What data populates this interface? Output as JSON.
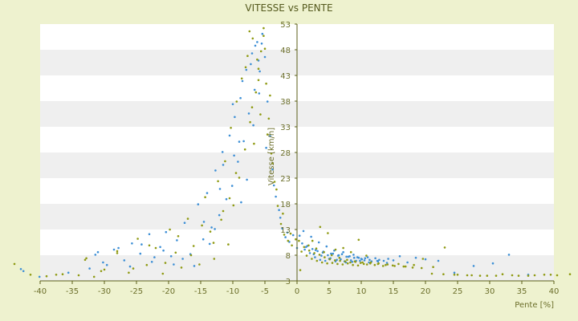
{
  "chart_data": {
    "type": "scatter",
    "title": "VITESSE vs PENTE",
    "xlabel": "Pente [%]",
    "ylabel": "Vitesse [km/h]",
    "xlim": [
      -40,
      40
    ],
    "ylim": [
      3,
      53
    ],
    "x_ticks": [
      -40,
      -35,
      -30,
      -25,
      -20,
      -15,
      -10,
      -5,
      0,
      5,
      10,
      15,
      20,
      25,
      30,
      35,
      40
    ],
    "y_ticks": [
      3,
      8,
      13,
      18,
      23,
      28,
      33,
      38,
      43,
      48,
      53
    ],
    "grid": "horizontal bands",
    "legend": "none",
    "colors": {
      "background": "#eef2cf",
      "plot_band_light": "#ffffff",
      "plot_band_dark": "#efefef",
      "axis": "#5b5f18",
      "series_a": "#3d8fd6",
      "series_b": "#8f9a12"
    },
    "series": [
      {
        "color": "#3d8fd6",
        "x": [
          -43.0,
          -42.6,
          -40.1,
          -35.6,
          -32.3,
          -31.4,
          -30.2,
          -28.5,
          -26.9,
          -25.7,
          -24.4,
          -23.0,
          -22.2,
          -21.3,
          -20.4,
          -19.6,
          -18.7,
          -17.5,
          -16.6,
          -15.4,
          -14.6,
          -14.0,
          -13.3,
          -12.7,
          -12.1,
          -11.6,
          -11.0,
          -10.5,
          -10.1,
          -9.7,
          -9.2,
          -8.8,
          -8.3,
          -7.9,
          -7.5,
          -7.0,
          -6.6,
          -6.2,
          -5.8,
          -5.4,
          -5.0,
          -4.6,
          -4.2,
          -3.8,
          -3.3,
          -2.8,
          -2.3,
          -1.8,
          -1.2,
          -0.6,
          0.0,
          0.4,
          0.8,
          1.2,
          1.6,
          2.0,
          2.4,
          2.8,
          3.2,
          3.6,
          4.0,
          4.4,
          4.8,
          5.2,
          5.6,
          6.0,
          6.4,
          6.8,
          7.2,
          7.6,
          8.0,
          8.4,
          8.8,
          9.2,
          9.6,
          10.0,
          10.5,
          11.0,
          11.6,
          12.2,
          12.8,
          13.5,
          14.2,
          15.0,
          16.0,
          17.2,
          18.5,
          20.0,
          22.0,
          24.5,
          27.5,
          30.5,
          33.0,
          36.0,
          -14.5,
          -12.0,
          -11.5,
          -9.0,
          -10.0,
          -8.5,
          -7.2,
          -6.5,
          -6.0,
          -5.5,
          -9.8,
          -8.7,
          -7.8,
          -6.8,
          -5.9,
          -12.8,
          -13.6,
          -4.8,
          -3.6,
          -2.6,
          -1.5,
          1.0,
          2.2,
          3.4,
          4.6,
          5.8,
          7.0,
          8.2,
          9.4,
          10.6,
          2.6,
          3.8,
          5.0,
          6.2,
          7.4,
          8.6,
          9.8,
          11.2,
          12.6,
          14.0,
          1.4,
          2.9,
          4.1,
          5.3,
          6.5,
          7.7,
          8.9,
          10.1,
          11.3,
          12.5,
          -16.0,
          -17.8,
          -19.2,
          -20.8,
          -22.6,
          -24.2,
          -26.0,
          -27.8,
          -29.6,
          -31.0
        ],
        "y": [
          5.3,
          4.9,
          3.8,
          4.6,
          5.4,
          8.1,
          6.6,
          9.1,
          7.0,
          10.3,
          8.3,
          12.1,
          7.6,
          9.6,
          12.5,
          7.8,
          10.9,
          14.3,
          8.2,
          17.9,
          11.1,
          20.1,
          13.4,
          24.5,
          15.8,
          28.1,
          18.9,
          31.3,
          21.5,
          34.9,
          26.2,
          38.6,
          30.2,
          44.1,
          35.6,
          47.3,
          40.2,
          49.5,
          43.8,
          51.1,
          46.6,
          37.9,
          31.2,
          24.7,
          19.4,
          16.8,
          13.2,
          11.5,
          10.6,
          11.9,
          9.4,
          11.8,
          10.3,
          9.1,
          9.8,
          8.4,
          9.2,
          7.6,
          8.8,
          7.1,
          8.5,
          6.9,
          8.0,
          7.4,
          8.3,
          6.8,
          7.9,
          7.2,
          8.6,
          6.6,
          7.7,
          7.0,
          8.1,
          6.9,
          7.5,
          7.3,
          7.0,
          7.6,
          6.8,
          7.4,
          7.1,
          6.9,
          7.3,
          7.0,
          7.8,
          6.6,
          7.5,
          7.2,
          6.9,
          4.6,
          5.9,
          6.4,
          8.1,
          4.2,
          14.5,
          20.9,
          25.6,
          30.1,
          37.4,
          41.9,
          45.2,
          48.8,
          45.9,
          49.2,
          27.4,
          18.3,
          22.7,
          33.3,
          39.5,
          13.1,
          10.2,
          28.9,
          21.6,
          15.3,
          12.4,
          12.7,
          11.6,
          10.5,
          9.7,
          8.9,
          8.2,
          7.8,
          7.6,
          7.4,
          8.2,
          7.9,
          7.3,
          7.1,
          6.8,
          6.7,
          6.9,
          6.6,
          6.8,
          6.5,
          9.6,
          9.0,
          8.7,
          8.3,
          8.0,
          7.7,
          7.5,
          7.2,
          7.1,
          6.9,
          5.9,
          7.3,
          6.2,
          8.9,
          6.7,
          10.1,
          5.8,
          9.4,
          6.1,
          8.6
        ]
      },
      {
        "color": "#8f9a12",
        "x": [
          -44.0,
          -41.5,
          -39.0,
          -36.5,
          -34.0,
          -32.8,
          -31.6,
          -30.0,
          -28.0,
          -26.2,
          -24.8,
          -23.4,
          -22.0,
          -20.9,
          -19.8,
          -18.9,
          -18.0,
          -17.0,
          -16.1,
          -15.2,
          -14.3,
          -13.5,
          -12.9,
          -12.3,
          -11.8,
          -11.2,
          -10.7,
          -10.3,
          -9.9,
          -9.4,
          -9.0,
          -8.6,
          -8.1,
          -7.7,
          -7.3,
          -6.9,
          -6.4,
          -6.0,
          -5.6,
          -5.2,
          -4.8,
          -4.4,
          -4.0,
          -3.5,
          -3.0,
          -2.5,
          -2.0,
          -1.4,
          -0.8,
          -0.2,
          0.3,
          0.7,
          1.1,
          1.5,
          1.9,
          2.3,
          2.7,
          3.1,
          3.5,
          3.9,
          4.3,
          4.7,
          5.1,
          5.5,
          5.9,
          6.3,
          6.7,
          7.1,
          7.5,
          7.9,
          8.3,
          8.7,
          9.1,
          9.5,
          9.9,
          10.4,
          10.9,
          11.5,
          12.1,
          12.7,
          13.4,
          14.1,
          14.9,
          15.8,
          16.9,
          18.2,
          19.6,
          21.2,
          23.0,
          25.0,
          27.2,
          29.6,
          32.0,
          34.5,
          37.0,
          39.5,
          -5.0,
          -6.2,
          -7.4,
          -4.2,
          -5.7,
          -6.7,
          -3.8,
          -8.0,
          -5.2,
          -6.0,
          -7.0,
          -4.6,
          -3.2,
          -2.2,
          -1.0,
          -9.5,
          -10.5,
          -11.5,
          -13.0,
          -14.8,
          -16.5,
          -18.5,
          -20.5,
          -23.0,
          -25.5,
          -28.0,
          -30.5,
          -33.0,
          -37.5,
          0.5,
          1.8,
          3.0,
          4.2,
          5.4,
          6.6,
          7.8,
          9.0,
          10.2,
          11.4,
          12.6,
          13.8,
          15.2,
          16.6,
          18.0,
          19.4,
          21.0,
          22.8,
          24.5,
          26.5,
          28.5,
          31.0,
          33.5,
          36.0,
          38.5,
          40.5,
          42.5,
          2.4,
          4.8,
          7.2,
          9.6,
          3.6,
          6.0,
          8.4,
          10.8
        ],
        "y": [
          6.3,
          4.2,
          3.9,
          4.3,
          4.1,
          7.4,
          3.8,
          5.2,
          8.8,
          4.6,
          11.2,
          6.1,
          9.4,
          4.4,
          13.0,
          8.5,
          5.6,
          15.1,
          9.8,
          6.2,
          19.3,
          12.6,
          7.3,
          22.4,
          14.9,
          26.3,
          10.1,
          32.8,
          17.7,
          37.9,
          23.1,
          42.4,
          28.6,
          46.8,
          33.9,
          50.2,
          39.7,
          44.3,
          47.7,
          52.2,
          41.4,
          34.6,
          27.8,
          22.3,
          17.6,
          14.1,
          12.0,
          10.8,
          9.9,
          11.1,
          10.8,
          8.7,
          9.6,
          7.9,
          8.9,
          7.3,
          8.4,
          6.9,
          8.1,
          6.6,
          7.6,
          6.4,
          7.2,
          6.5,
          7.0,
          6.3,
          6.9,
          6.2,
          6.8,
          6.4,
          6.6,
          6.1,
          6.7,
          6.0,
          6.5,
          6.3,
          6.2,
          6.6,
          6.1,
          6.4,
          5.9,
          6.2,
          6.0,
          6.3,
          5.8,
          6.1,
          7.3,
          5.7,
          9.5,
          4.2,
          4.1,
          4.0,
          4.3,
          4.0,
          4.1,
          4.2,
          48.2,
          46.1,
          51.6,
          39.1,
          35.4,
          29.7,
          25.9,
          44.6,
          50.7,
          42.1,
          36.8,
          31.5,
          20.8,
          16.1,
          12.2,
          24.0,
          19.1,
          16.6,
          10.4,
          13.8,
          8.0,
          11.7,
          6.5,
          9.9,
          5.4,
          8.4,
          4.9,
          7.1,
          4.2,
          5.1,
          9.9,
          9.3,
          8.6,
          8.0,
          7.5,
          7.1,
          6.8,
          6.6,
          6.4,
          6.3,
          6.1,
          5.9,
          5.8,
          5.6,
          5.5,
          4.4,
          4.3,
          4.2,
          4.1,
          4.0,
          4.0,
          4.1,
          4.0,
          4.2,
          4.1,
          4.3,
          10.8,
          12.3,
          9.4,
          11.0,
          13.5,
          9.1,
          8.6,
          7.9
        ]
      }
    ]
  }
}
